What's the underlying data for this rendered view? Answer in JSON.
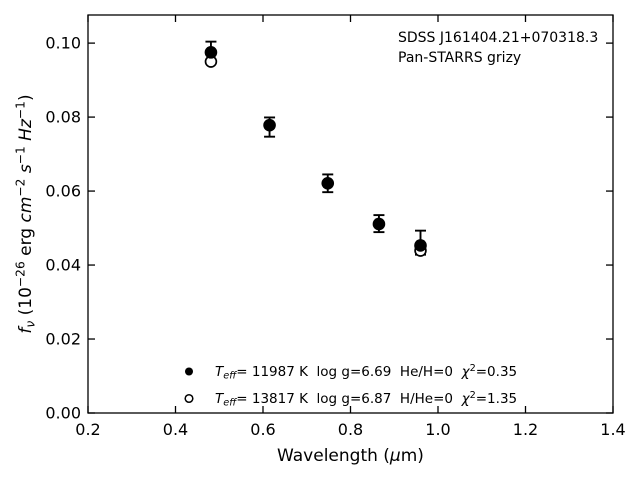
{
  "figure": {
    "background": "#ffffff",
    "color": "#000000",
    "annotation_lines": [
      "SDSS J161404.21+070318.3",
      "Pan-STARRS grizy"
    ]
  },
  "chart_data": {
    "type": "scatter",
    "title": "",
    "xlabel": "Wavelength (μm)",
    "ylabel": "f_ν (10⁻²⁶ erg cm⁻² s⁻¹ Hz⁻¹)",
    "xlim": [
      0.2,
      1.4
    ],
    "ylim": [
      0.0,
      0.1076
    ],
    "grid": false,
    "xticks": [
      0.2,
      0.4,
      0.6,
      0.8,
      1.0,
      1.2,
      1.4
    ],
    "xtick_labels": [
      "0.2",
      "0.4",
      "0.6",
      "0.8",
      "1.0",
      "1.2",
      "1.4"
    ],
    "yticks": [
      0.0,
      0.02,
      0.04,
      0.06,
      0.08,
      0.1
    ],
    "ytick_labels": [
      "0.00",
      "0.02",
      "0.04",
      "0.06",
      "0.08",
      "0.10"
    ],
    "annotation": [
      "SDSS J161404.21+070318.3",
      "Pan-STARRS grizy"
    ],
    "legend_position": "lower center",
    "legend_frame": false,
    "bands": [
      "g",
      "r",
      "i",
      "z",
      "y"
    ],
    "series": [
      {
        "name": "T_eff= 11987 K  log g=6.69  He/H=0  χ²=0.35",
        "marker": "filled-circle",
        "color": "#000000",
        "x": [
          0.481,
          0.615,
          0.748,
          0.865,
          0.96
        ],
        "y": [
          0.0975,
          0.0778,
          0.0621,
          0.0511,
          0.0453
        ],
        "yerr_plus": [
          0.0029,
          0.0021,
          0.0024,
          0.0024,
          0.004
        ],
        "yerr_minus": [
          0.0029,
          0.0031,
          0.0024,
          0.0022,
          0.0025
        ]
      },
      {
        "name": "T_eff= 13817 K  log g=6.87  H/He=0  χ²=1.35",
        "marker": "open-circle",
        "color": "#000000",
        "x": [
          0.481,
          0.96
        ],
        "y": [
          0.095,
          0.0439
        ],
        "note": "open markers at r, i, z bands hidden behind filled-circle series"
      }
    ]
  },
  "rich_text": {
    "xlabel_segments": [
      {
        "t": "Wavelength ("
      },
      {
        "t": "μ",
        "i": 1
      },
      {
        "t": "m)"
      }
    ],
    "ylabel_segments": [
      {
        "t": "f",
        "i": 1
      },
      {
        "t": "ν",
        "i": 1,
        "v": "sub"
      },
      {
        "t": " (10"
      },
      {
        "t": "−26",
        "v": "sup"
      },
      {
        "t": " erg "
      },
      {
        "t": "cm",
        "i": 1
      },
      {
        "t": "−2",
        "v": "sup"
      },
      {
        "t": " "
      },
      {
        "t": "s",
        "i": 1
      },
      {
        "t": "−1",
        "v": "sup"
      },
      {
        "t": " "
      },
      {
        "t": "Hz",
        "i": 1
      },
      {
        "t": "−1",
        "v": "sup"
      },
      {
        "t": ")"
      }
    ],
    "legend_rows": [
      {
        "marker": "filled-circle",
        "segments": [
          {
            "t": "T",
            "i": 1
          },
          {
            "t": "eff",
            "i": 1,
            "v": "sub"
          },
          {
            "t": "= 11987 K  log g=6.69  He/H=0  "
          },
          {
            "t": "χ",
            "i": 1
          },
          {
            "t": "2",
            "v": "sup"
          },
          {
            "t": "=0.35"
          }
        ]
      },
      {
        "marker": "open-circle",
        "segments": [
          {
            "t": "T",
            "i": 1
          },
          {
            "t": "eff",
            "i": 1,
            "v": "sub"
          },
          {
            "t": "= 13817 K  log g=6.87  H/He=0  "
          },
          {
            "t": "χ",
            "i": 1
          },
          {
            "t": "2",
            "v": "sup"
          },
          {
            "t": "=1.35"
          }
        ]
      }
    ]
  }
}
